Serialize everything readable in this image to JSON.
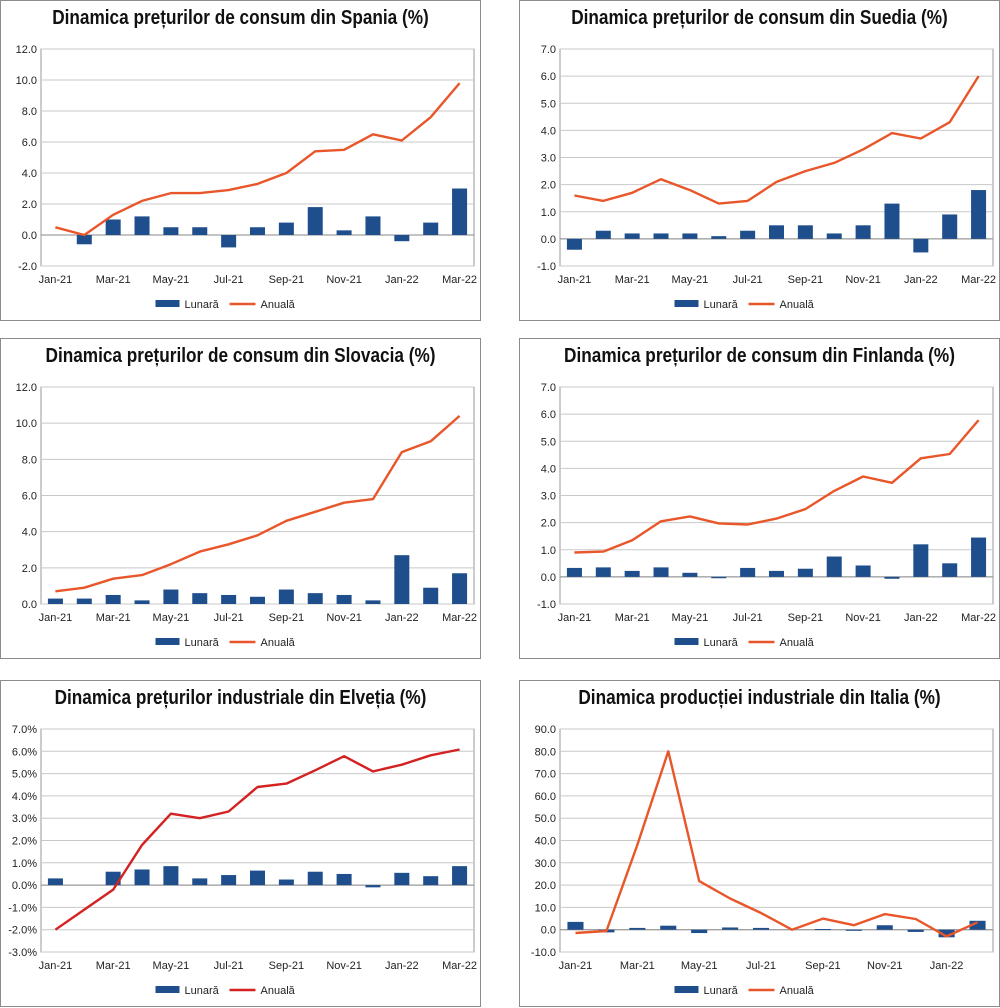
{
  "chart_data": [
    {
      "type": "bar+line",
      "title": "Dinamica prețurilor de consum din Spania (%)",
      "x": [
        "Jan-21",
        "Feb-21",
        "Mar-21",
        "Apr-21",
        "May-21",
        "Jun-21",
        "Jul-21",
        "Aug-21",
        "Sep-21",
        "Oct-21",
        "Nov-21",
        "Dec-21",
        "Jan-22",
        "Feb-22",
        "Mar-22"
      ],
      "x_tick_labels": [
        "Jan-21",
        "Mar-21",
        "May-21",
        "Jul-21",
        "Sep-21",
        "Nov-21",
        "Jan-22",
        "Mar-22"
      ],
      "ylim": [
        -2,
        12
      ],
      "y_ticks": [
        -2,
        0,
        2,
        4,
        6,
        8,
        10,
        12
      ],
      "y_tick_labels": [
        "-2.0",
        "0.0",
        "2.0",
        "4.0",
        "6.0",
        "8.0",
        "10.0",
        "12.0"
      ],
      "grid": true,
      "legend_position": "bottom",
      "series": [
        {
          "name": "Lunară",
          "kind": "bar",
          "color": "#1f4e8c",
          "values": [
            0.0,
            -0.6,
            1.0,
            1.2,
            0.5,
            0.5,
            -0.8,
            0.5,
            0.8,
            1.8,
            0.3,
            1.2,
            -0.4,
            0.8,
            3.0
          ]
        },
        {
          "name": "Anuală",
          "kind": "line",
          "color": "#e8562a",
          "values": [
            0.5,
            0.0,
            1.3,
            2.2,
            2.7,
            2.7,
            2.9,
            3.3,
            4.0,
            5.4,
            5.5,
            6.5,
            6.1,
            7.6,
            9.8
          ]
        }
      ]
    },
    {
      "type": "bar+line",
      "title": "Dinamica prețurilor de consum din Suedia (%)",
      "x": [
        "Jan-21",
        "Feb-21",
        "Mar-21",
        "Apr-21",
        "May-21",
        "Jun-21",
        "Jul-21",
        "Aug-21",
        "Sep-21",
        "Oct-21",
        "Nov-21",
        "Dec-21",
        "Jan-22",
        "Feb-22",
        "Mar-22"
      ],
      "x_tick_labels": [
        "Jan-21",
        "Mar-21",
        "May-21",
        "Jul-21",
        "Sep-21",
        "Nov-21",
        "Jan-22",
        "Mar-22"
      ],
      "ylim": [
        -1,
        7
      ],
      "y_ticks": [
        -1,
        0,
        1,
        2,
        3,
        4,
        5,
        6,
        7
      ],
      "y_tick_labels": [
        "-1.0",
        "0.0",
        "1.0",
        "2.0",
        "3.0",
        "4.0",
        "5.0",
        "6.0",
        "7.0"
      ],
      "grid": true,
      "legend_position": "bottom",
      "series": [
        {
          "name": "Lunară",
          "kind": "bar",
          "color": "#1f4e8c",
          "values": [
            -0.4,
            0.3,
            0.2,
            0.2,
            0.2,
            0.1,
            0.3,
            0.5,
            0.5,
            0.2,
            0.5,
            1.3,
            -0.5,
            0.9,
            1.8
          ]
        },
        {
          "name": "Anuală",
          "kind": "line",
          "color": "#e8562a",
          "values": [
            1.6,
            1.4,
            1.7,
            2.2,
            1.8,
            1.3,
            1.4,
            2.1,
            2.5,
            2.8,
            3.3,
            3.9,
            3.7,
            4.3,
            6.0
          ]
        }
      ]
    },
    {
      "type": "bar+line",
      "title": "Dinamica prețurilor de consum din Slovacia (%)",
      "x": [
        "Jan-21",
        "Feb-21",
        "Mar-21",
        "Apr-21",
        "May-21",
        "Jun-21",
        "Jul-21",
        "Aug-21",
        "Sep-21",
        "Oct-21",
        "Nov-21",
        "Dec-21",
        "Jan-22",
        "Feb-22",
        "Mar-22"
      ],
      "x_tick_labels": [
        "Jan-21",
        "Mar-21",
        "May-21",
        "Jul-21",
        "Sep-21",
        "Nov-21",
        "Jan-22",
        "Mar-22"
      ],
      "ylim": [
        0,
        12
      ],
      "y_ticks": [
        0,
        2,
        4,
        6,
        8,
        10,
        12
      ],
      "y_tick_labels": [
        "0.0",
        "2.0",
        "4.0",
        "6.0",
        "8.0",
        "10.0",
        "12.0"
      ],
      "grid": true,
      "legend_position": "bottom",
      "series": [
        {
          "name": "Lunară",
          "kind": "bar",
          "color": "#1f4e8c",
          "values": [
            0.3,
            0.3,
            0.5,
            0.2,
            0.8,
            0.6,
            0.5,
            0.4,
            0.8,
            0.6,
            0.5,
            0.2,
            2.7,
            0.9,
            1.7
          ]
        },
        {
          "name": "Anuală",
          "kind": "line",
          "color": "#e8562a",
          "values": [
            0.7,
            0.9,
            1.4,
            1.6,
            2.2,
            2.9,
            3.3,
            3.8,
            4.6,
            5.1,
            5.6,
            5.8,
            8.4,
            9.0,
            10.4
          ]
        }
      ]
    },
    {
      "type": "bar+line",
      "title": "Dinamica prețurilor de consum din Finlanda (%)",
      "x": [
        "Jan-21",
        "Feb-21",
        "Mar-21",
        "Apr-21",
        "May-21",
        "Jun-21",
        "Jul-21",
        "Aug-21",
        "Sep-21",
        "Oct-21",
        "Nov-21",
        "Dec-21",
        "Jan-22",
        "Feb-22",
        "Mar-22"
      ],
      "x_tick_labels": [
        "Jan-21",
        "Mar-21",
        "May-21",
        "Jul-21",
        "Sep-21",
        "Nov-21",
        "Jan-22",
        "Mar-22"
      ],
      "ylim": [
        -1,
        7
      ],
      "y_ticks": [
        -1,
        0,
        1,
        2,
        3,
        4,
        5,
        6,
        7
      ],
      "y_tick_labels": [
        "-1.0",
        "0.0",
        "1.0",
        "2.0",
        "3.0",
        "4.0",
        "5.0",
        "6.0",
        "7.0"
      ],
      "grid": true,
      "legend_position": "bottom",
      "series": [
        {
          "name": "Lunară",
          "kind": "bar",
          "color": "#1f4e8c",
          "values": [
            0.33,
            0.35,
            0.22,
            0.35,
            0.15,
            -0.05,
            0.33,
            0.22,
            0.3,
            0.75,
            0.42,
            -0.07,
            1.2,
            0.5,
            1.45
          ]
        },
        {
          "name": "Anuală",
          "kind": "line",
          "color": "#e8562a",
          "values": [
            0.9,
            0.93,
            1.35,
            2.05,
            2.23,
            1.97,
            1.93,
            2.15,
            2.5,
            3.17,
            3.7,
            3.47,
            4.37,
            4.53,
            5.78
          ]
        }
      ]
    },
    {
      "type": "bar+line",
      "title": "Dinamica prețurilor industriale din Elveția (%)",
      "x": [
        "Jan-21",
        "Feb-21",
        "Mar-21",
        "Apr-21",
        "May-21",
        "Jun-21",
        "Jul-21",
        "Aug-21",
        "Sep-21",
        "Oct-21",
        "Nov-21",
        "Dec-21",
        "Jan-22",
        "Feb-22",
        "Mar-22"
      ],
      "x_tick_labels": [
        "Jan-21",
        "Mar-21",
        "May-21",
        "Jul-21",
        "Sep-21",
        "Nov-21",
        "Jan-22",
        "Mar-22"
      ],
      "ylim": [
        -3,
        7
      ],
      "y_ticks": [
        -3,
        -2,
        -1,
        0,
        1,
        2,
        3,
        4,
        5,
        6,
        7
      ],
      "y_tick_labels": [
        "-3.0%",
        "-2.0%",
        "-1.0%",
        "0.0%",
        "1.0%",
        "2.0%",
        "3.0%",
        "4.0%",
        "5.0%",
        "6.0%",
        "7.0%"
      ],
      "grid": true,
      "legend_position": "bottom",
      "series": [
        {
          "name": "Lunară",
          "kind": "bar",
          "color": "#1f4e8c",
          "values": [
            0.3,
            0.0,
            0.6,
            0.7,
            0.85,
            0.3,
            0.45,
            0.65,
            0.25,
            0.6,
            0.5,
            -0.1,
            0.55,
            0.4,
            0.85
          ]
        },
        {
          "name": "Anuală",
          "kind": "line",
          "color": "#d42121",
          "values": [
            -2.0,
            -1.1,
            -0.2,
            1.8,
            3.2,
            3.0,
            3.3,
            4.4,
            4.55,
            5.15,
            5.78,
            5.1,
            5.4,
            5.82,
            6.08
          ]
        }
      ]
    },
    {
      "type": "bar+line",
      "title": "Dinamica producției industriale din Italia (%)",
      "x": [
        "Jan-21",
        "Feb-21",
        "Mar-21",
        "Apr-21",
        "May-21",
        "Jun-21",
        "Jul-21",
        "Aug-21",
        "Sep-21",
        "Oct-21",
        "Nov-21",
        "Dec-21",
        "Jan-22",
        "Feb-22"
      ],
      "x_tick_labels": [
        "Jan-21",
        "Mar-21",
        "May-21",
        "Jul-21",
        "Sep-21",
        "Nov-21",
        "Jan-22"
      ],
      "ylim": [
        -10,
        90
      ],
      "y_ticks": [
        -10,
        0,
        10,
        20,
        30,
        40,
        50,
        60,
        70,
        80,
        90
      ],
      "y_tick_labels": [
        "-10.0",
        "0.0",
        "10.0",
        "20.0",
        "30.0",
        "40.0",
        "50.0",
        "60.0",
        "70.0",
        "80.0",
        "90.0"
      ],
      "grid": true,
      "legend_position": "bottom",
      "series": [
        {
          "name": "Lunară",
          "kind": "bar",
          "color": "#1f4e8c",
          "values": [
            3.5,
            -1.2,
            0.8,
            1.8,
            -1.5,
            1.0,
            0.8,
            0.0,
            0.3,
            -0.5,
            2.0,
            -1.0,
            -3.4,
            4.0
          ]
        },
        {
          "name": "Anuală",
          "kind": "line",
          "color": "#e8562a",
          "values": [
            -1.5,
            -0.6,
            38.0,
            80.0,
            21.8,
            14.0,
            7.5,
            0.0,
            5.0,
            2.0,
            7.0,
            4.8,
            -3.0,
            3.3
          ]
        }
      ]
    }
  ]
}
